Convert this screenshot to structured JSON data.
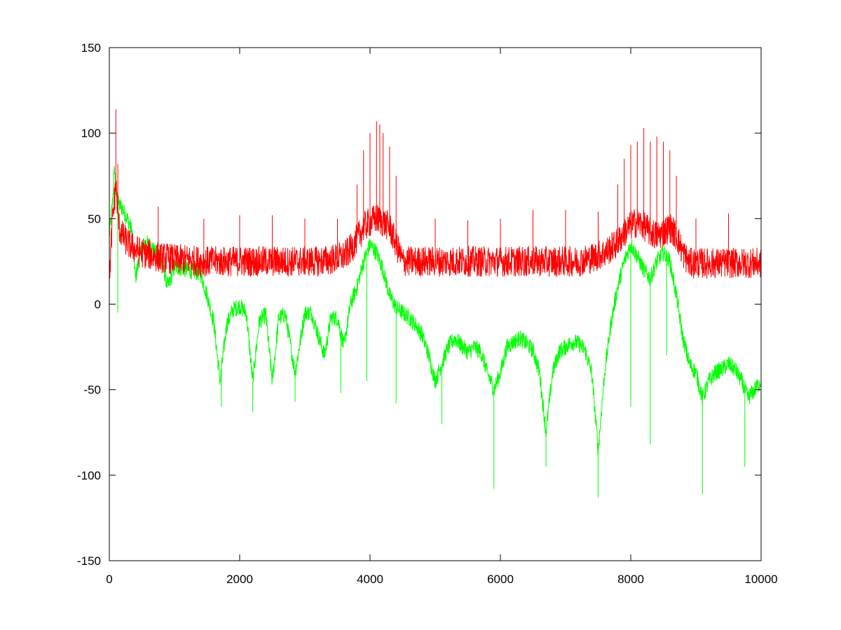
{
  "chart_data": {
    "type": "line",
    "title": "",
    "xlabel": "",
    "ylabel": "",
    "xlim": [
      0,
      10000
    ],
    "ylim": [
      -150,
      150
    ],
    "grid": false,
    "legend": "none",
    "x_ticks": [
      0,
      2000,
      4000,
      6000,
      8000,
      10000
    ],
    "y_ticks": [
      -150,
      -100,
      -50,
      0,
      50,
      100,
      150
    ],
    "x_tick_labels": [
      "0",
      "2000",
      "4000",
      "6000",
      "8000",
      "10000"
    ],
    "y_tick_labels": [
      "-150",
      "-100",
      "-50",
      "0",
      "50",
      "100",
      "150"
    ],
    "series": [
      {
        "color": "#ff0000",
        "x": [
          0,
          50,
          100,
          150,
          200,
          300,
          400,
          500,
          600,
          700,
          800,
          900,
          1000,
          1200,
          1400,
          1600,
          1800,
          2000,
          2200,
          2400,
          2600,
          2800,
          3000,
          3200,
          3400,
          3600,
          3700,
          3800,
          3900,
          4000,
          4100,
          4200,
          4300,
          4400,
          4500,
          4600,
          4800,
          5000,
          5200,
          5400,
          5600,
          5800,
          6000,
          6200,
          6400,
          6600,
          6800,
          7000,
          7200,
          7400,
          7600,
          7800,
          7900,
          8000,
          8100,
          8200,
          8300,
          8400,
          8500,
          8600,
          8700,
          8800,
          8900,
          9000,
          9200,
          9400,
          9600,
          9800,
          10000
        ],
        "y": [
          15,
          50,
          70,
          45,
          40,
          35,
          32,
          30,
          29,
          28,
          27,
          27,
          26,
          26,
          25,
          25,
          25,
          25,
          25,
          25,
          25,
          25,
          25,
          25,
          26,
          28,
          32,
          38,
          45,
          48,
          50,
          48,
          45,
          35,
          25,
          25,
          25,
          25,
          25,
          25,
          25,
          25,
          25,
          25,
          25,
          25,
          25,
          25,
          25,
          27,
          30,
          36,
          42,
          46,
          48,
          46,
          42,
          40,
          42,
          45,
          40,
          30,
          24,
          24,
          24,
          24,
          24,
          24,
          24
        ],
        "spikes": {
          "x": [
            100,
            130,
            750,
            1450,
            2000,
            2500,
            3000,
            3500,
            3800,
            3900,
            4000,
            4100,
            4150,
            4200,
            4300,
            4400,
            5000,
            5500,
            6000,
            6500,
            7000,
            7500,
            7800,
            7900,
            8000,
            8100,
            8200,
            8300,
            8400,
            8500,
            8600,
            8700,
            9000,
            9500
          ],
          "top": [
            114,
            82,
            57,
            50,
            52,
            52,
            50,
            50,
            70,
            90,
            100,
            107,
            105,
            100,
            92,
            75,
            50,
            49,
            50,
            55,
            55,
            54,
            70,
            85,
            93,
            95,
            103,
            95,
            98,
            95,
            90,
            75,
            50,
            53
          ]
        }
      },
      {
        "color": "#00ff00",
        "x": [
          0,
          50,
          80,
          100,
          150,
          200,
          250,
          300,
          350,
          400,
          450,
          500,
          550,
          600,
          650,
          700,
          800,
          900,
          1000,
          1200,
          1400,
          1500,
          1600,
          1700,
          1800,
          1900,
          2000,
          2100,
          2200,
          2300,
          2400,
          2500,
          2600,
          2700,
          2850,
          3000,
          3100,
          3300,
          3400,
          3500,
          3600,
          3700,
          3800,
          3900,
          4000,
          4100,
          4200,
          4300,
          4400,
          4500,
          4600,
          4700,
          4800,
          4900,
          5000,
          5100,
          5200,
          5300,
          5400,
          5500,
          5600,
          5700,
          5800,
          5900,
          6000,
          6100,
          6200,
          6300,
          6400,
          6500,
          6600,
          6700,
          6800,
          6900,
          7000,
          7100,
          7200,
          7300,
          7400,
          7500,
          7600,
          7700,
          7800,
          7900,
          8000,
          8100,
          8200,
          8300,
          8400,
          8500,
          8600,
          8700,
          8800,
          8900,
          9000,
          9100,
          9200,
          9300,
          9400,
          9500,
          9600,
          9700,
          9800,
          9900,
          10000
        ],
        "y": [
          40,
          60,
          80,
          65,
          58,
          56,
          52,
          48,
          42,
          15,
          25,
          33,
          36,
          35,
          34,
          30,
          25,
          10,
          22,
          20,
          18,
          5,
          -10,
          -45,
          -12,
          -3,
          -1,
          -5,
          -45,
          -10,
          -6,
          -45,
          -8,
          -6,
          -40,
          -5,
          -5,
          -30,
          -8,
          -8,
          -25,
          0,
          10,
          25,
          35,
          30,
          20,
          5,
          -2,
          -5,
          -8,
          -12,
          -18,
          -30,
          -45,
          -35,
          -25,
          -20,
          -24,
          -28,
          -25,
          -28,
          -40,
          -50,
          -40,
          -25,
          -22,
          -20,
          -23,
          -27,
          -40,
          -75,
          -40,
          -28,
          -25,
          -22,
          -23,
          -27,
          -40,
          -85,
          -40,
          -10,
          10,
          25,
          35,
          28,
          20,
          15,
          25,
          30,
          25,
          5,
          -20,
          -35,
          -40,
          -55,
          -45,
          -40,
          -38,
          -35,
          -38,
          -45,
          -55,
          -50,
          -45
        ],
        "spikes": {
          "x": [
            130,
            1720,
            2200,
            2850,
            3550,
            3950,
            4400,
            5100,
            5900,
            6700,
            7500,
            8000,
            8300,
            8550,
            9100,
            9750
          ],
          "bottom": [
            -5,
            -60,
            -63,
            -57,
            -52,
            -45,
            -58,
            -70,
            -108,
            -95,
            -113,
            -60,
            -82,
            -30,
            -111,
            -95
          ]
        }
      }
    ]
  }
}
